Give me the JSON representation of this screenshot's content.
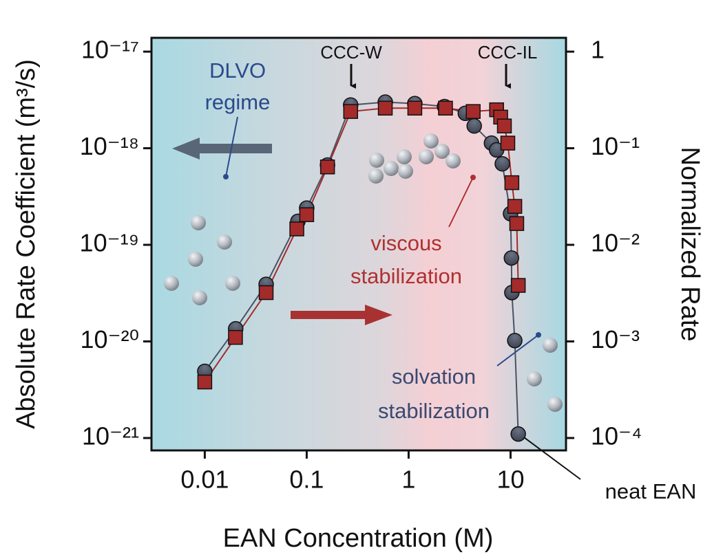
{
  "chart_data": {
    "type": "scatter",
    "xlabel": "EAN Concentration (M)",
    "ylabel": "Absolute Rate Coefficient (m³/s)",
    "y2label": "Normalized Rate",
    "xscale": "log",
    "yscale": "log",
    "xlim": [
      0.003,
      35
    ],
    "ylim": [
      7.44e-22,
      1.39e-17
    ],
    "y2lim": [
      7.44e-05,
      1.39
    ],
    "xticks": [
      0.01,
      0.1,
      1,
      10
    ],
    "yticks": [
      {
        "value": 1e-21,
        "label": "10⁻²¹"
      },
      {
        "value": 1e-20,
        "label": "10⁻²⁰"
      },
      {
        "value": 1e-19,
        "label": "10⁻¹⁹"
      },
      {
        "value": 1e-18,
        "label": "10⁻¹⁸"
      },
      {
        "value": 1e-17,
        "label": "10⁻¹⁷"
      }
    ],
    "y2ticks": [
      {
        "value": 0.0001,
        "label": "10⁻⁴"
      },
      {
        "value": 0.001,
        "label": "10⁻³"
      },
      {
        "value": 0.01,
        "label": "10⁻²"
      },
      {
        "value": 0.1,
        "label": "10⁻¹"
      },
      1
    ],
    "series": [
      {
        "color": "#4a5263",
        "marker": "circle",
        "x": [
          0.01,
          0.0201,
          0.04,
          0.082,
          0.1,
          0.16,
          0.27,
          0.59,
          1.15,
          2.25,
          3.6,
          4.4,
          6.5,
          7.3,
          8.3,
          10,
          10.2,
          10.3,
          11,
          11.9
        ],
        "values": [
          4.9e-21,
          1.35e-20,
          3.9e-20,
          1.75e-19,
          2.4e-19,
          6.7e-19,
          2.8e-18,
          3e-18,
          2.9e-18,
          2.7e-18,
          2.3e-18,
          1.7e-18,
          1.13e-18,
          9.6e-19,
          6.9e-19,
          2.1e-19,
          7.3e-20,
          3.2e-20,
          1.02e-20,
          1.1e-21
        ]
      },
      {
        "color": "#a52a2a",
        "marker": "square",
        "x": [
          0.01,
          0.02,
          0.04,
          0.08,
          0.1,
          0.16,
          0.27,
          0.59,
          1.15,
          2.3,
          4.3,
          7.3,
          8.0,
          8.7,
          9.4,
          10.3,
          11,
          11.5,
          11.9
        ],
        "values": [
          3.8e-21,
          1.1e-20,
          3.2e-20,
          1.46e-19,
          2.05e-19,
          6.4e-19,
          2.4e-18,
          2.6e-18,
          2.6e-18,
          2.6e-18,
          2.4e-18,
          2.5e-18,
          2.1e-18,
          1.7e-18,
          1.13e-18,
          4.4e-19,
          2.5e-19,
          1.66e-19,
          3.8e-20
        ]
      }
    ],
    "annotations": [
      "CCC-W",
      "CCC-IL",
      "DLVO",
      "regime",
      "viscous",
      "stabilization",
      "solvation",
      "stabilization",
      "neat EAN"
    ]
  }
}
